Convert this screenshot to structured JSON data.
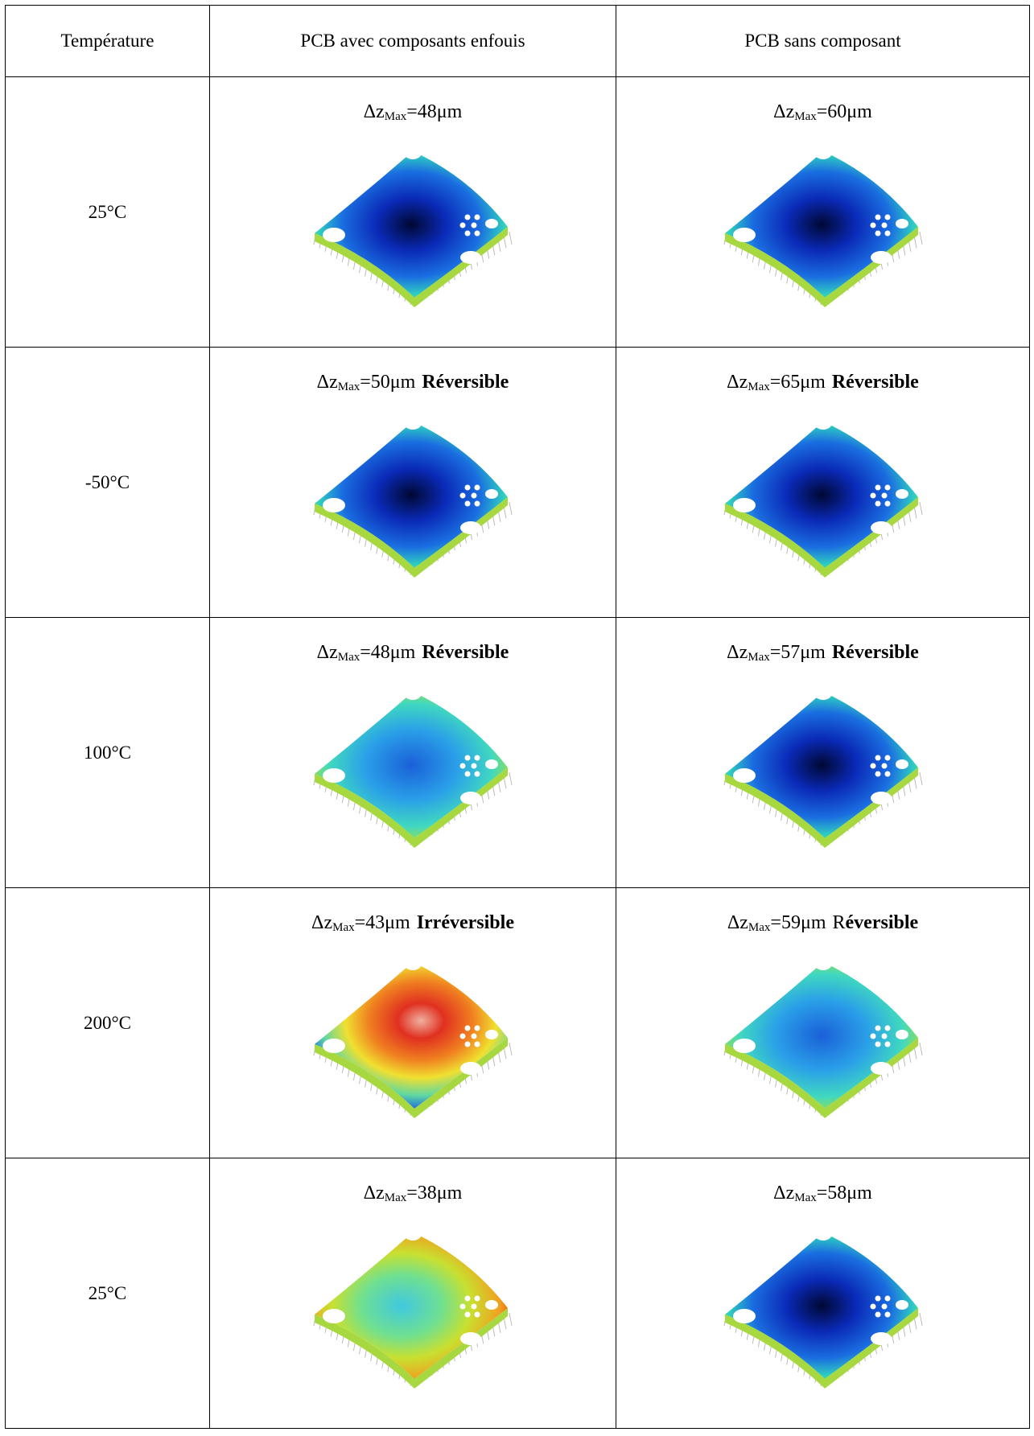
{
  "header": [
    "Température",
    "PCB avec composants enfouis",
    "PCB sans composant"
  ],
  "rows": [
    {
      "temperature": "25°C",
      "cells": [
        {
          "delta": "Δz",
          "sub": "Max",
          "value": "=48μm"
        },
        {
          "delta": "Δz",
          "sub": "Max",
          "value": "=60μm"
        }
      ]
    },
    {
      "temperature": "-50°C",
      "cells": [
        {
          "delta": "Δz",
          "sub": "Max",
          "value": "=50μm",
          "status": "Réversible"
        },
        {
          "delta": "Δz",
          "sub": "Max",
          "value": "=65μm",
          "status": "Réversible"
        }
      ]
    },
    {
      "temperature": "100°C",
      "cells": [
        {
          "delta": "Δz",
          "sub": "Max",
          "value": "=48μm",
          "status": "Réversible"
        },
        {
          "delta": "Δz",
          "sub": "Max",
          "value": "=57μm",
          "status": "Réversible"
        }
      ]
    },
    {
      "temperature": "200°C",
      "cells": [
        {
          "delta": "Δz",
          "sub": "Max",
          "value": "=43μm",
          "status": "Irréversible"
        },
        {
          "delta": "Δz",
          "sub": "Max",
          "value": "=59μm",
          "status_plain": "R",
          "status": "éversible"
        }
      ]
    },
    {
      "temperature": "25°C",
      "cells": [
        {
          "delta": "Δz",
          "sub": "Max",
          "value": "=38μm"
        },
        {
          "delta": "Δz",
          "sub": "Max",
          "value": "=58μm"
        }
      ]
    }
  ]
}
